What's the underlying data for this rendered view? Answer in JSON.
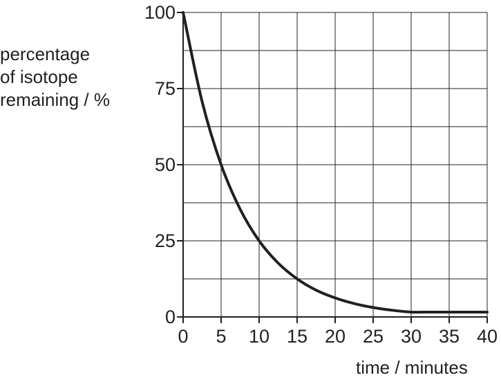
{
  "chart_data": {
    "type": "line",
    "title": "",
    "ylabel_lines": [
      "percentage",
      "of isotope",
      "remaining / %"
    ],
    "xlabel": "time / minutes",
    "xlim": [
      0,
      40
    ],
    "ylim": [
      0,
      100
    ],
    "x_ticks": [
      "0",
      "5",
      "10",
      "15",
      "20",
      "25",
      "30",
      "35",
      "40"
    ],
    "y_ticks": [
      "0",
      "25",
      "50",
      "75",
      "100"
    ],
    "grid": true,
    "line_color": "#231f20",
    "series": [
      {
        "x": [
          0,
          2.5,
          5,
          7.5,
          10,
          12.5,
          15,
          17.5,
          20,
          22.5,
          25,
          27.5,
          30,
          32.5,
          35,
          37.5,
          40
        ],
        "y": [
          100,
          70.7,
          50,
          35.4,
          25,
          17.7,
          12.5,
          8.8,
          6.25,
          4.4,
          3.1,
          2.2,
          1.6,
          1.6,
          1.6,
          1.6,
          1.6
        ]
      }
    ]
  }
}
